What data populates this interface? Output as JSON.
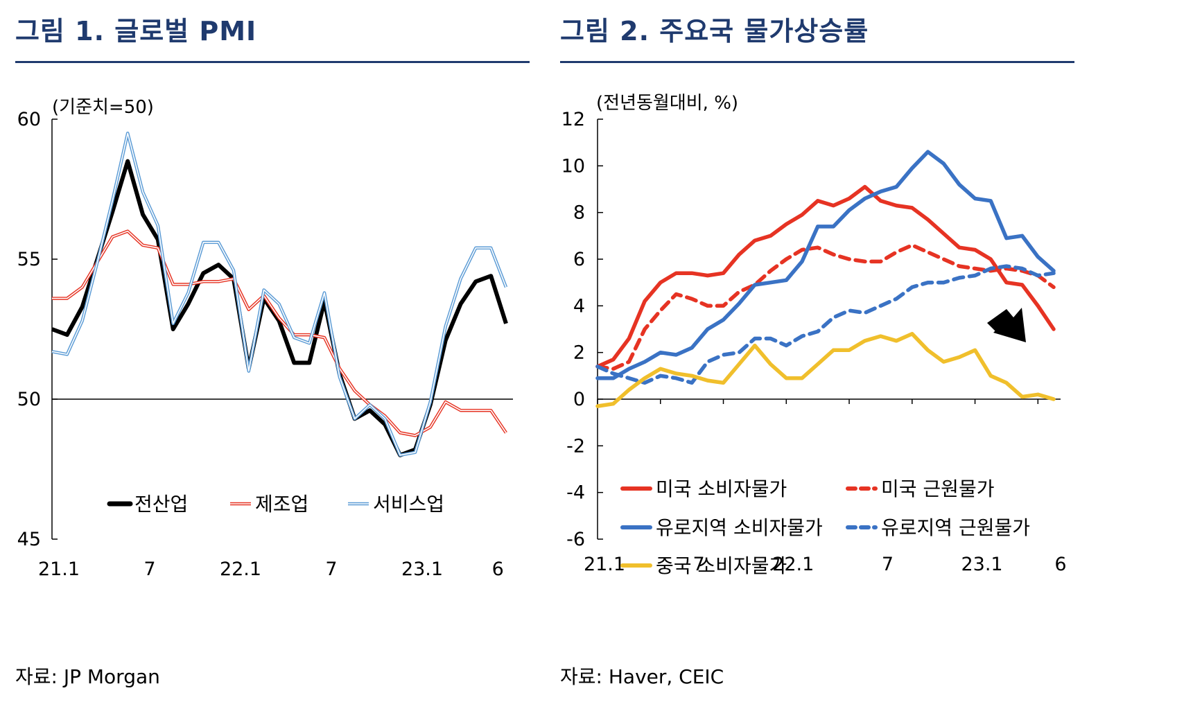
{
  "figures": [
    {
      "title": "그림 1. 글로벌 PMI",
      "unit": "(기준치=50)",
      "source": "자료: JP Morgan"
    },
    {
      "title": "그림 2. 주요국 물가상승률",
      "unit": "(전년동월대비, %)",
      "source": "자료: Haver, CEIC"
    }
  ],
  "colors": {
    "accent": "#1f3a6e",
    "black": "#000000",
    "red": "#e63323",
    "blue": "#3a72c4",
    "yellow": "#f0bf2c",
    "light_blue": "#5b9bd5"
  },
  "chart_data": [
    {
      "type": "line",
      "title": "그림 1. 글로벌 PMI",
      "ylabel": "(기준치=50)",
      "ylim": [
        45,
        60
      ],
      "yticks": [
        45,
        50,
        55,
        60
      ],
      "x_tick_labels": [
        {
          "i": 0,
          "label": "21.1"
        },
        {
          "i": 6,
          "label": "7"
        },
        {
          "i": 12,
          "label": "22.1"
        },
        {
          "i": 18,
          "label": "7"
        },
        {
          "i": 24,
          "label": "23.1"
        },
        {
          "i": 29,
          "label": "6"
        }
      ],
      "reference_line": 50,
      "legend_position": "bottom",
      "series": [
        {
          "name": "전산업",
          "color": "#000000",
          "style": "thick",
          "values": [
            52.5,
            52.3,
            53.3,
            55.0,
            56.7,
            58.5,
            56.6,
            55.7,
            52.5,
            53.4,
            54.5,
            54.8,
            54.3,
            51.1,
            53.6,
            52.8,
            51.3,
            51.3,
            53.5,
            50.9,
            49.3,
            49.6,
            49.1,
            48.0,
            48.2,
            49.8,
            52.1,
            53.4,
            54.2,
            54.4,
            52.7
          ]
        },
        {
          "name": "제조업",
          "color": "#e63323",
          "style": "double",
          "values": [
            53.6,
            53.6,
            54.0,
            54.9,
            55.8,
            56.0,
            55.5,
            55.4,
            54.1,
            54.1,
            54.2,
            54.2,
            54.3,
            53.2,
            53.7,
            52.9,
            52.3,
            52.3,
            52.2,
            51.1,
            50.3,
            49.8,
            49.4,
            48.8,
            48.7,
            49.0,
            49.9,
            49.6,
            49.6,
            49.6,
            48.8
          ]
        },
        {
          "name": "서비스업",
          "color": "#5b9bd5",
          "style": "double",
          "values": [
            51.7,
            51.6,
            52.8,
            54.9,
            57.1,
            59.5,
            57.4,
            56.2,
            52.7,
            53.8,
            55.6,
            55.6,
            54.6,
            51.0,
            53.9,
            53.4,
            52.2,
            52.0,
            53.8,
            50.8,
            49.3,
            49.8,
            49.3,
            48.0,
            48.1,
            49.9,
            52.6,
            54.3,
            55.4,
            55.4,
            54.0
          ]
        }
      ]
    },
    {
      "type": "line",
      "title": "그림 2. 주요국 물가상승률",
      "ylabel": "(전년동월대비, %)",
      "ylim": [
        -6,
        12
      ],
      "yticks": [
        -6,
        -4,
        -2,
        0,
        2,
        4,
        6,
        8,
        10,
        12
      ],
      "x_tick_labels": [
        {
          "i": 0,
          "label": "21.1"
        },
        {
          "i": 6,
          "label": "7"
        },
        {
          "i": 12,
          "label": "22.1"
        },
        {
          "i": 18,
          "label": "7"
        },
        {
          "i": 24,
          "label": "23.1"
        },
        {
          "i": 29,
          "label": "6"
        }
      ],
      "annotations": [
        "arrow pointing down-right near end of series"
      ],
      "legend_position": "bottom-center",
      "series": [
        {
          "name": "미국 소비자물가",
          "color": "#e63323",
          "dash": "solid",
          "values": [
            1.4,
            1.7,
            2.6,
            4.2,
            5.0,
            5.4,
            5.4,
            5.3,
            5.4,
            6.2,
            6.8,
            7.0,
            7.5,
            7.9,
            8.5,
            8.3,
            8.6,
            9.1,
            8.5,
            8.3,
            8.2,
            7.7,
            7.1,
            6.5,
            6.4,
            6.0,
            5.0,
            4.9,
            4.0,
            3.0
          ]
        },
        {
          "name": "미국 근원물가",
          "color": "#e63323",
          "dash": "dashed",
          "values": [
            1.4,
            1.3,
            1.6,
            3.0,
            3.8,
            4.5,
            4.3,
            4.0,
            4.0,
            4.6,
            4.9,
            5.5,
            6.0,
            6.4,
            6.5,
            6.2,
            6.0,
            5.9,
            5.9,
            6.3,
            6.6,
            6.3,
            6.0,
            5.7,
            5.6,
            5.5,
            5.6,
            5.5,
            5.3,
            4.8
          ]
        },
        {
          "name": "유로지역 소비자물가",
          "color": "#3a72c4",
          "dash": "solid",
          "values": [
            0.9,
            0.9,
            1.3,
            1.6,
            2.0,
            1.9,
            2.2,
            3.0,
            3.4,
            4.1,
            4.9,
            5.0,
            5.1,
            5.9,
            7.4,
            7.4,
            8.1,
            8.6,
            8.9,
            9.1,
            9.9,
            10.6,
            10.1,
            9.2,
            8.6,
            8.5,
            6.9,
            7.0,
            6.1,
            5.5
          ]
        },
        {
          "name": "유로지역 근원물가",
          "color": "#3a72c4",
          "dash": "dashed",
          "values": [
            1.4,
            1.1,
            0.9,
            0.7,
            1.0,
            0.9,
            0.7,
            1.6,
            1.9,
            2.0,
            2.6,
            2.6,
            2.3,
            2.7,
            2.9,
            3.5,
            3.8,
            3.7,
            4.0,
            4.3,
            4.8,
            5.0,
            5.0,
            5.2,
            5.3,
            5.6,
            5.7,
            5.6,
            5.3,
            5.4
          ]
        },
        {
          "name": "중국 소비자물가",
          "color": "#f0bf2c",
          "dash": "solid",
          "values": [
            -0.3,
            -0.2,
            0.4,
            0.9,
            1.3,
            1.1,
            1.0,
            0.8,
            0.7,
            1.5,
            2.3,
            1.5,
            0.9,
            0.9,
            1.5,
            2.1,
            2.1,
            2.5,
            2.7,
            2.5,
            2.8,
            2.1,
            1.6,
            1.8,
            2.1,
            1.0,
            0.7,
            0.1,
            0.2,
            0.0
          ]
        }
      ]
    }
  ]
}
